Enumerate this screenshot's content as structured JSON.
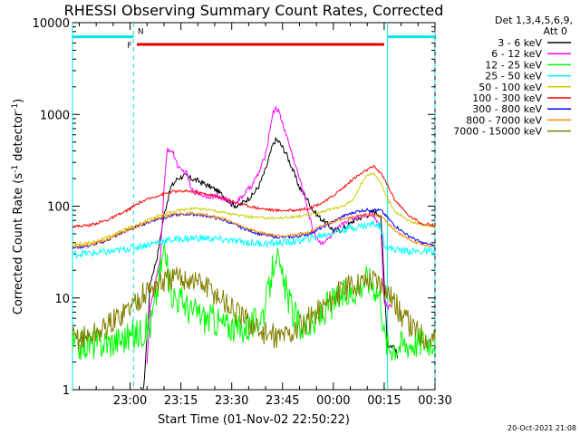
{
  "chart_data": {
    "type": "line",
    "title": "RHESSI Observing Summary Count Rates, Corrected",
    "xlabel": "Start Time (01-Nov-02 22:50:22)",
    "ylabel_main": "Corrected Count Rate (s",
    "ylabel_sup": "-1",
    "ylabel_tail": " detector",
    "ylabel_close": ")",
    "yscale": "log",
    "ylim": [
      1,
      10000
    ],
    "xlim_minutes": [
      -7,
      100
    ],
    "x_tick_labels": [
      {
        "label": "23:00",
        "minute": 10
      },
      {
        "label": "23:15",
        "minute": 25
      },
      {
        "label": "23:30",
        "minute": 40
      },
      {
        "label": "23:45",
        "minute": 55
      },
      {
        "label": "00:00",
        "minute": 70
      },
      {
        "label": "00:15",
        "minute": 85
      },
      {
        "label": "00:30",
        "minute": 100
      }
    ],
    "y_tick_labels": [
      {
        "label": "10000",
        "value": 10000
      },
      {
        "label": "1000",
        "value": 1000
      },
      {
        "label": "100",
        "value": 100
      },
      {
        "label": "10",
        "value": 10
      },
      {
        "label": "1",
        "value": 1
      }
    ],
    "legend_header_1": "Det 1,3,4,5,6,9,",
    "legend_header_2": "Att 0",
    "legend_position": "top-right outside plot",
    "timestamp": "20-Oct-2021 21:08",
    "flags": [
      {
        "label": "N",
        "color": "#00e5e5",
        "segments": [
          [
            -7,
            11
          ],
          [
            86,
            100
          ]
        ],
        "level": 7000
      },
      {
        "label": "F",
        "color": "#e00000",
        "segments": [
          [
            12,
            85
          ]
        ],
        "level": 5800
      }
    ],
    "night_markers_minutes": [
      -7,
      11,
      86,
      100
    ],
    "series": [
      {
        "name": "3 - 6 keV",
        "color": "#000000",
        "points": [
          [
            13,
            1
          ],
          [
            14,
            1
          ],
          [
            16,
            15
          ],
          [
            18,
            28
          ],
          [
            20,
            80
          ],
          [
            22,
            160
          ],
          [
            24,
            200
          ],
          [
            26,
            215
          ],
          [
            28,
            200
          ],
          [
            30,
            190
          ],
          [
            32,
            175
          ],
          [
            34,
            160
          ],
          [
            36,
            145
          ],
          [
            38,
            125
          ],
          [
            40,
            105
          ],
          [
            42,
            100
          ],
          [
            44,
            115
          ],
          [
            46,
            130
          ],
          [
            48,
            165
          ],
          [
            50,
            250
          ],
          [
            52,
            450
          ],
          [
            53,
            530
          ],
          [
            54,
            500
          ],
          [
            56,
            380
          ],
          [
            58,
            250
          ],
          [
            60,
            160
          ],
          [
            62,
            125
          ],
          [
            64,
            90
          ],
          [
            66,
            75
          ],
          [
            68,
            65
          ],
          [
            70,
            55
          ],
          [
            72,
            55
          ],
          [
            74,
            60
          ],
          [
            76,
            70
          ],
          [
            78,
            75
          ],
          [
            80,
            80
          ],
          [
            82,
            88
          ],
          [
            84,
            80
          ],
          [
            85,
            15
          ],
          [
            86,
            3
          ],
          [
            88,
            3
          ],
          [
            89,
            2.2
          ]
        ]
      },
      {
        "name": "6 - 12 keV",
        "color": "#ff00ff",
        "points": [
          [
            15,
            2
          ],
          [
            16,
            8
          ],
          [
            18,
            18
          ],
          [
            19,
            30
          ],
          [
            20,
            150
          ],
          [
            21,
            420
          ],
          [
            22,
            410
          ],
          [
            23,
            360
          ],
          [
            24,
            280
          ],
          [
            25,
            240
          ],
          [
            26,
            240
          ],
          [
            27,
            220
          ],
          [
            28,
            150
          ],
          [
            30,
            140
          ],
          [
            32,
            130
          ],
          [
            34,
            130
          ],
          [
            36,
            125
          ],
          [
            38,
            120
          ],
          [
            40,
            110
          ],
          [
            42,
            115
          ],
          [
            44,
            140
          ],
          [
            46,
            170
          ],
          [
            48,
            230
          ],
          [
            50,
            360
          ],
          [
            52,
            1000
          ],
          [
            53,
            1200
          ],
          [
            54,
            1050
          ],
          [
            55,
            800
          ],
          [
            56,
            620
          ],
          [
            58,
            350
          ],
          [
            60,
            200
          ],
          [
            62,
            110
          ],
          [
            63,
            75
          ],
          [
            64,
            55
          ],
          [
            66,
            40
          ],
          [
            68,
            42
          ],
          [
            70,
            50
          ],
          [
            72,
            60
          ],
          [
            74,
            70
          ],
          [
            76,
            75
          ],
          [
            78,
            80
          ],
          [
            80,
            82
          ],
          [
            82,
            80
          ],
          [
            84,
            60
          ],
          [
            85,
            9
          ],
          [
            86,
            8
          ],
          [
            87,
            8
          ]
        ]
      },
      {
        "name": "12 - 25 keV",
        "color": "#00ff00",
        "points": [
          [
            -7,
            3
          ],
          [
            -4,
            3.1
          ],
          [
            0,
            3.2
          ],
          [
            4,
            3.3
          ],
          [
            8,
            3.6
          ],
          [
            12,
            4
          ],
          [
            16,
            5
          ],
          [
            18,
            12
          ],
          [
            20,
            35
          ],
          [
            22,
            12
          ],
          [
            24,
            10
          ],
          [
            26,
            9
          ],
          [
            28,
            7
          ],
          [
            30,
            7
          ],
          [
            32,
            6
          ],
          [
            34,
            6
          ],
          [
            36,
            5.5
          ],
          [
            38,
            5
          ],
          [
            40,
            5
          ],
          [
            42,
            4.5
          ],
          [
            44,
            4.8
          ],
          [
            46,
            5
          ],
          [
            48,
            6
          ],
          [
            50,
            8
          ],
          [
            52,
            20
          ],
          [
            53,
            35
          ],
          [
            54,
            20
          ],
          [
            56,
            12
          ],
          [
            58,
            7
          ],
          [
            60,
            5
          ],
          [
            62,
            5
          ],
          [
            64,
            5
          ],
          [
            66,
            6
          ],
          [
            68,
            8
          ],
          [
            70,
            9
          ],
          [
            72,
            10
          ],
          [
            74,
            11
          ],
          [
            76,
            12
          ],
          [
            78,
            14
          ],
          [
            80,
            16
          ],
          [
            82,
            14
          ],
          [
            84,
            10
          ],
          [
            85,
            4
          ],
          [
            86,
            3
          ],
          [
            88,
            3
          ],
          [
            92,
            3.2
          ],
          [
            96,
            3.4
          ],
          [
            100,
            3.5
          ]
        ]
      },
      {
        "name": "25 - 50 keV",
        "color": "#00ffff",
        "points": [
          [
            -7,
            30
          ],
          [
            0,
            31
          ],
          [
            5,
            32
          ],
          [
            10,
            35
          ],
          [
            15,
            38
          ],
          [
            20,
            42
          ],
          [
            25,
            44
          ],
          [
            30,
            45
          ],
          [
            35,
            44
          ],
          [
            40,
            42
          ],
          [
            45,
            40
          ],
          [
            50,
            39
          ],
          [
            55,
            40
          ],
          [
            60,
            42
          ],
          [
            65,
            46
          ],
          [
            70,
            52
          ],
          [
            75,
            58
          ],
          [
            80,
            62
          ],
          [
            82,
            65
          ],
          [
            84,
            60
          ],
          [
            85,
            40
          ],
          [
            86,
            35
          ],
          [
            90,
            33
          ],
          [
            95,
            32
          ],
          [
            100,
            32
          ]
        ]
      },
      {
        "name": "50 - 100 keV",
        "color": "#cccc00",
        "points": [
          [
            -7,
            38
          ],
          [
            -2,
            40
          ],
          [
            3,
            45
          ],
          [
            8,
            55
          ],
          [
            13,
            65
          ],
          [
            18,
            78
          ],
          [
            23,
            88
          ],
          [
            28,
            95
          ],
          [
            33,
            92
          ],
          [
            38,
            85
          ],
          [
            43,
            78
          ],
          [
            48,
            75
          ],
          [
            53,
            74
          ],
          [
            58,
            76
          ],
          [
            63,
            80
          ],
          [
            68,
            90
          ],
          [
            73,
            100
          ],
          [
            76,
            120
          ],
          [
            78,
            170
          ],
          [
            80,
            220
          ],
          [
            82,
            230
          ],
          [
            84,
            180
          ],
          [
            86,
            120
          ],
          [
            88,
            90
          ],
          [
            92,
            70
          ],
          [
            96,
            62
          ],
          [
            100,
            60
          ]
        ]
      },
      {
        "name": "100 - 300 keV",
        "color": "#ff0000",
        "points": [
          [
            -7,
            60
          ],
          [
            -2,
            62
          ],
          [
            3,
            70
          ],
          [
            8,
            85
          ],
          [
            13,
            110
          ],
          [
            18,
            130
          ],
          [
            23,
            145
          ],
          [
            28,
            145
          ],
          [
            33,
            135
          ],
          [
            38,
            120
          ],
          [
            43,
            105
          ],
          [
            48,
            95
          ],
          [
            53,
            90
          ],
          [
            58,
            90
          ],
          [
            63,
            95
          ],
          [
            68,
            115
          ],
          [
            73,
            160
          ],
          [
            76,
            200
          ],
          [
            80,
            250
          ],
          [
            82,
            270
          ],
          [
            84,
            230
          ],
          [
            86,
            170
          ],
          [
            88,
            120
          ],
          [
            92,
            80
          ],
          [
            96,
            65
          ],
          [
            100,
            62
          ]
        ]
      },
      {
        "name": "300 - 800 keV",
        "color": "#0000ff",
        "points": [
          [
            -7,
            35
          ],
          [
            -2,
            37
          ],
          [
            3,
            42
          ],
          [
            8,
            52
          ],
          [
            13,
            62
          ],
          [
            18,
            72
          ],
          [
            23,
            80
          ],
          [
            28,
            82
          ],
          [
            33,
            78
          ],
          [
            38,
            70
          ],
          [
            43,
            58
          ],
          [
            48,
            50
          ],
          [
            53,
            46
          ],
          [
            58,
            46
          ],
          [
            63,
            50
          ],
          [
            68,
            62
          ],
          [
            73,
            78
          ],
          [
            77,
            88
          ],
          [
            81,
            92
          ],
          [
            84,
            90
          ],
          [
            86,
            75
          ],
          [
            88,
            62
          ],
          [
            92,
            48
          ],
          [
            96,
            40
          ],
          [
            100,
            37
          ]
        ]
      },
      {
        "name": "800 - 7000 keV",
        "color": "#ff8800",
        "points": [
          [
            -7,
            36
          ],
          [
            -2,
            38
          ],
          [
            3,
            43
          ],
          [
            8,
            52
          ],
          [
            13,
            62
          ],
          [
            18,
            74
          ],
          [
            23,
            82
          ],
          [
            28,
            84
          ],
          [
            33,
            80
          ],
          [
            38,
            72
          ],
          [
            43,
            60
          ],
          [
            48,
            52
          ],
          [
            53,
            48
          ],
          [
            58,
            48
          ],
          [
            63,
            52
          ],
          [
            68,
            64
          ],
          [
            73,
            74
          ],
          [
            77,
            78
          ],
          [
            81,
            80
          ],
          [
            84,
            78
          ],
          [
            86,
            66
          ],
          [
            88,
            55
          ],
          [
            92,
            44
          ],
          [
            96,
            38
          ],
          [
            100,
            36
          ]
        ]
      },
      {
        "name": "7000 - 15000 keV",
        "color": "#808000",
        "points": [
          [
            -7,
            3.6
          ],
          [
            -2,
            3.8
          ],
          [
            2,
            4.5
          ],
          [
            6,
            6
          ],
          [
            10,
            8
          ],
          [
            14,
            11
          ],
          [
            18,
            14
          ],
          [
            22,
            16
          ],
          [
            26,
            16.5
          ],
          [
            30,
            15
          ],
          [
            34,
            12
          ],
          [
            38,
            9
          ],
          [
            42,
            6.5
          ],
          [
            46,
            5
          ],
          [
            50,
            4
          ],
          [
            54,
            3.8
          ],
          [
            58,
            4.2
          ],
          [
            62,
            5.5
          ],
          [
            66,
            7.5
          ],
          [
            70,
            10
          ],
          [
            74,
            13
          ],
          [
            78,
            15
          ],
          [
            82,
            16
          ],
          [
            84,
            15
          ],
          [
            86,
            12
          ],
          [
            88,
            9
          ],
          [
            90,
            6.5
          ],
          [
            94,
            4.5
          ],
          [
            98,
            3.6
          ],
          [
            100,
            3.5
          ]
        ]
      }
    ]
  }
}
